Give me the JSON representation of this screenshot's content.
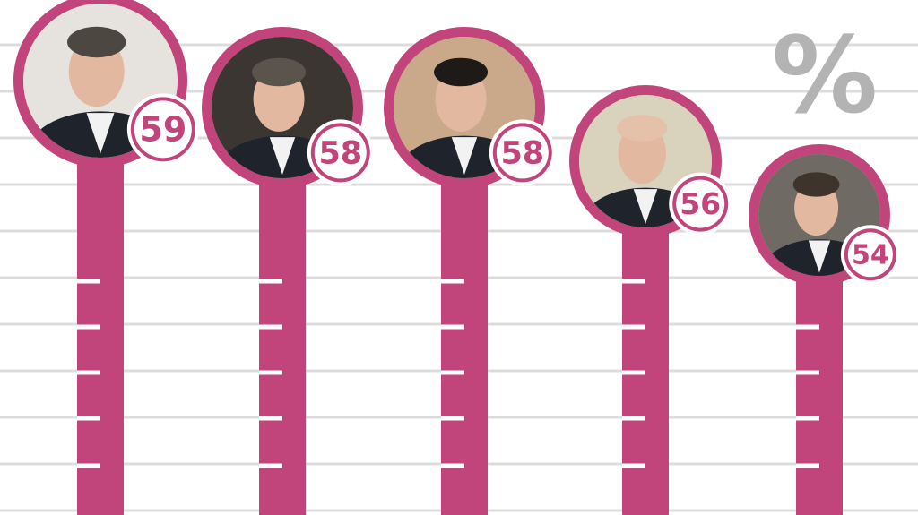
{
  "chart_data": {
    "type": "bar",
    "title": "",
    "xlabel": "",
    "ylabel": "",
    "unit_symbol": "%",
    "categories": [
      "",
      "",
      "",
      "",
      ""
    ],
    "values": [
      59,
      58,
      58,
      56,
      54
    ],
    "value_labels": [
      "59",
      "58",
      "58",
      "56",
      "54"
    ],
    "ylim": [
      45,
      62
    ],
    "grid": true,
    "bar_color": "#c1447a",
    "grid_color": "#dcdcdc"
  }
}
